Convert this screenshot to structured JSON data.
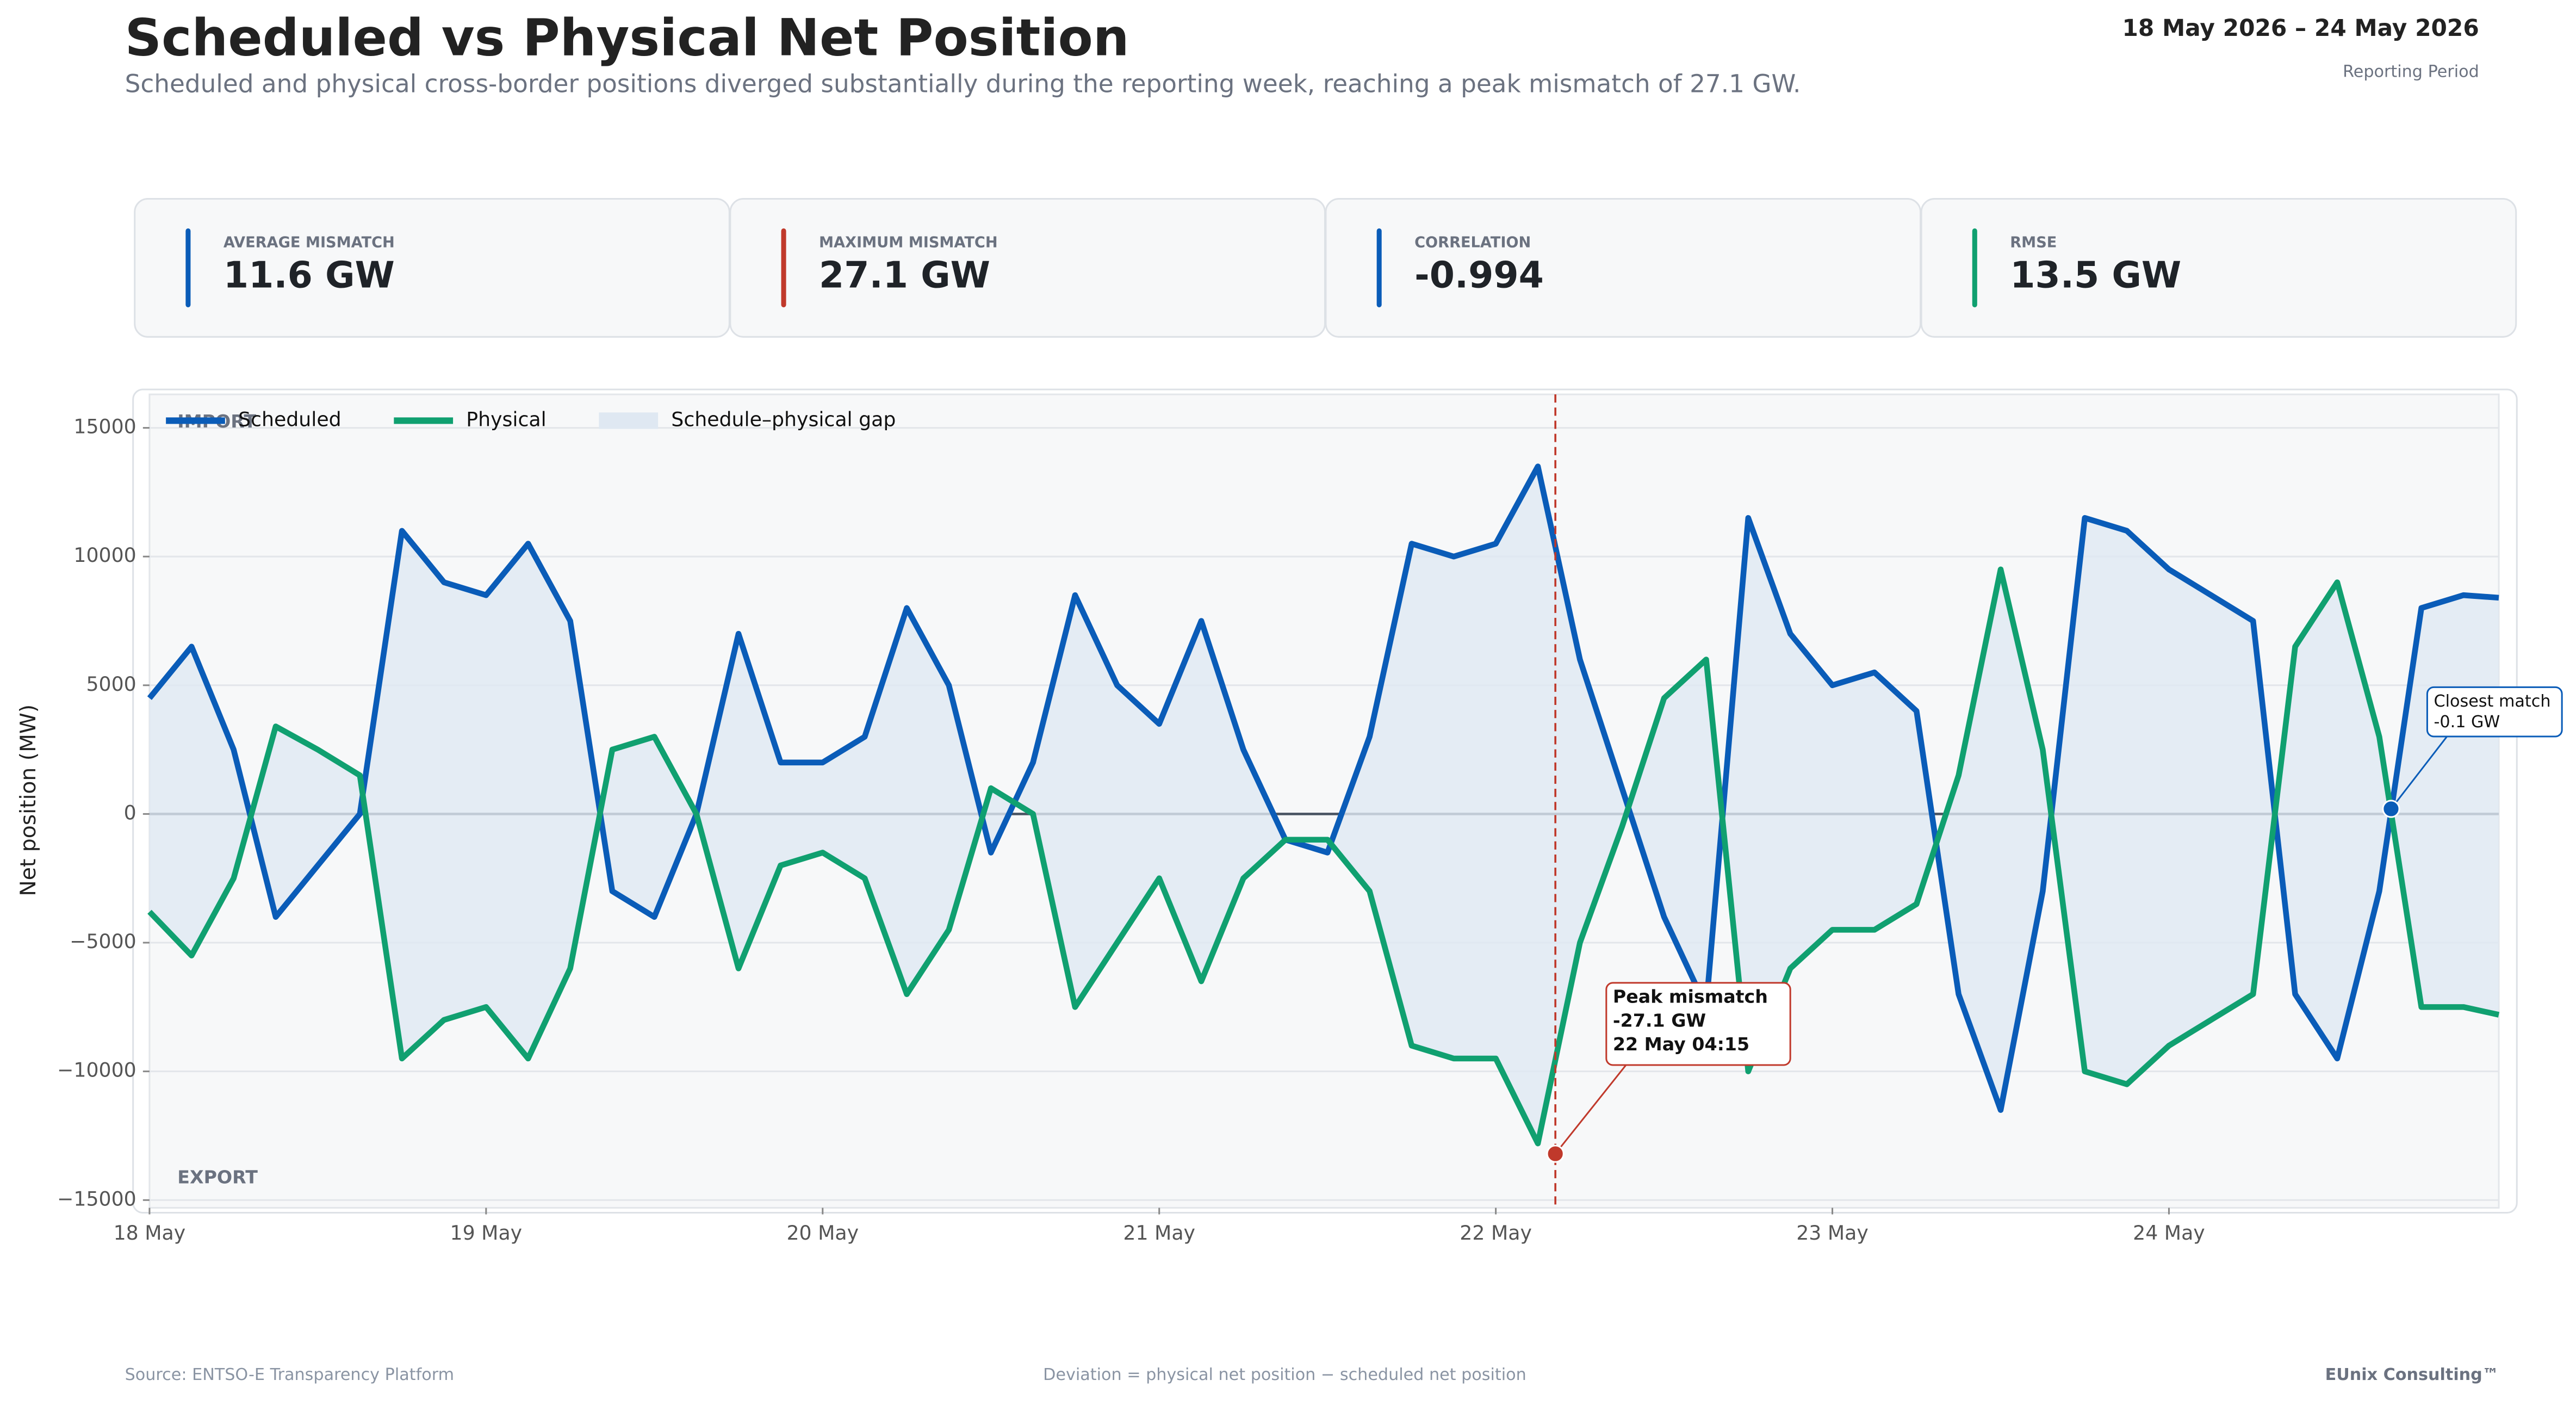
{
  "header": {
    "title": "Scheduled vs Physical Net Position",
    "subtitle": "Scheduled and physical cross-border positions diverged substantially during the reporting week, reaching a peak mismatch of 27.1 GW.",
    "period": "18 May 2026 – 24 May 2026",
    "period_label": "Reporting Period"
  },
  "kpis": [
    {
      "label": "AVERAGE MISMATCH",
      "value": "11.6 GW",
      "color": "#0a5cb8"
    },
    {
      "label": "MAXIMUM MISMATCH",
      "value": "27.1 GW",
      "color": "#c0392b"
    },
    {
      "label": "CORRELATION",
      "value": "-0.994",
      "color": "#0a5cb8"
    },
    {
      "label": "RMSE",
      "value": "13.5 GW",
      "color": "#10a070"
    }
  ],
  "chart_data": {
    "type": "line",
    "ylabel": "Net position (MW)",
    "x": [
      0,
      0.125,
      0.25,
      0.375,
      0.5,
      0.625,
      0.75,
      0.875,
      1,
      1.125,
      1.25,
      1.375,
      1.5,
      1.625,
      1.75,
      1.875,
      2,
      2.125,
      2.25,
      2.375,
      2.5,
      2.625,
      2.75,
      2.875,
      3,
      3.125,
      3.25,
      3.375,
      3.5,
      3.625,
      3.75,
      3.875,
      4,
      4.125,
      4.25,
      4.375,
      4.5,
      4.625,
      4.75,
      4.875,
      5,
      5.125,
      5.25,
      5.375,
      5.5,
      5.625,
      5.75,
      5.875,
      6,
      6.125,
      6.25,
      6.375,
      6.5,
      6.625,
      6.75,
      6.875,
      6.98
    ],
    "series": [
      {
        "name": "Scheduled",
        "color": "#0a5cb8",
        "values": [
          4500,
          6500,
          2500,
          -4000,
          -2000,
          0,
          11000,
          9000,
          8500,
          10500,
          7500,
          -3000,
          -4000,
          0,
          7000,
          2000,
          2000,
          3000,
          8000,
          5000,
          -1500,
          2000,
          8500,
          5000,
          3500,
          7500,
          2500,
          -1000,
          -1500,
          3000,
          10500,
          10000,
          10500,
          13500,
          6000,
          1000,
          -4000,
          -7500,
          11500,
          7000,
          5000,
          5500,
          4000,
          -7000,
          -11500,
          -3000,
          11500,
          11000,
          9500,
          8500,
          7500,
          -7000,
          -9500,
          -3000,
          8000,
          8500,
          8400
        ]
      },
      {
        "name": "Physical",
        "color": "#10a070",
        "values": [
          -3800,
          -5500,
          -2500,
          3400,
          2500,
          1500,
          -9500,
          -8000,
          -7500,
          -9500,
          -6000,
          2500,
          3000,
          0,
          -6000,
          -2000,
          -1500,
          -2500,
          -7000,
          -4500,
          1000,
          0,
          -7500,
          -5000,
          -2500,
          -6500,
          -2500,
          -1000,
          -1000,
          -3000,
          -9000,
          -9500,
          -9500,
          -12800,
          -5000,
          -500,
          4500,
          6000,
          -10000,
          -6000,
          -4500,
          -4500,
          -3500,
          1500,
          9500,
          2500,
          -10000,
          -10500,
          -9000,
          -8000,
          -7000,
          6500,
          9000,
          3000,
          -7500,
          -7500,
          -7800
        ]
      }
    ],
    "fill": {
      "name": "Schedule–physical gap",
      "color": "#dfe8f2"
    },
    "xlim": [
      0,
      6.98
    ],
    "xticks": [
      {
        "value": 0,
        "label": "18 May"
      },
      {
        "value": 1,
        "label": "19 May"
      },
      {
        "value": 2,
        "label": "20 May"
      },
      {
        "value": 3,
        "label": "21 May"
      },
      {
        "value": 4,
        "label": "22 May"
      },
      {
        "value": 5,
        "label": "23 May"
      },
      {
        "value": 6,
        "label": "24 May"
      }
    ],
    "ylim": [
      -15300,
      16300
    ],
    "yticks": [
      {
        "value": -15000,
        "label": "−15000"
      },
      {
        "value": -10000,
        "label": "−10000"
      },
      {
        "value": -5000,
        "label": "−5000"
      },
      0,
      5000,
      10000,
      15000
    ],
    "grid": true,
    "legend": "upper left",
    "zone_labels": {
      "top": "IMPORT",
      "bottom": "EXPORT"
    },
    "annotations": [
      {
        "text": [
          "Peak mismatch",
          "-27.1 GW",
          "22 May 04:15"
        ],
        "x": 4.177,
        "y": -13200,
        "color": "#c0392b"
      },
      {
        "text": [
          "Closest match",
          "-0.1 GW"
        ],
        "x": 6.66,
        "y": 200,
        "color": "#0a5cb8"
      }
    ]
  },
  "footer": {
    "source": "Source: ENTSO-E Transparency Platform",
    "note": "Deviation = physical net position − scheduled net position",
    "brand": "EUnix Consulting™"
  }
}
